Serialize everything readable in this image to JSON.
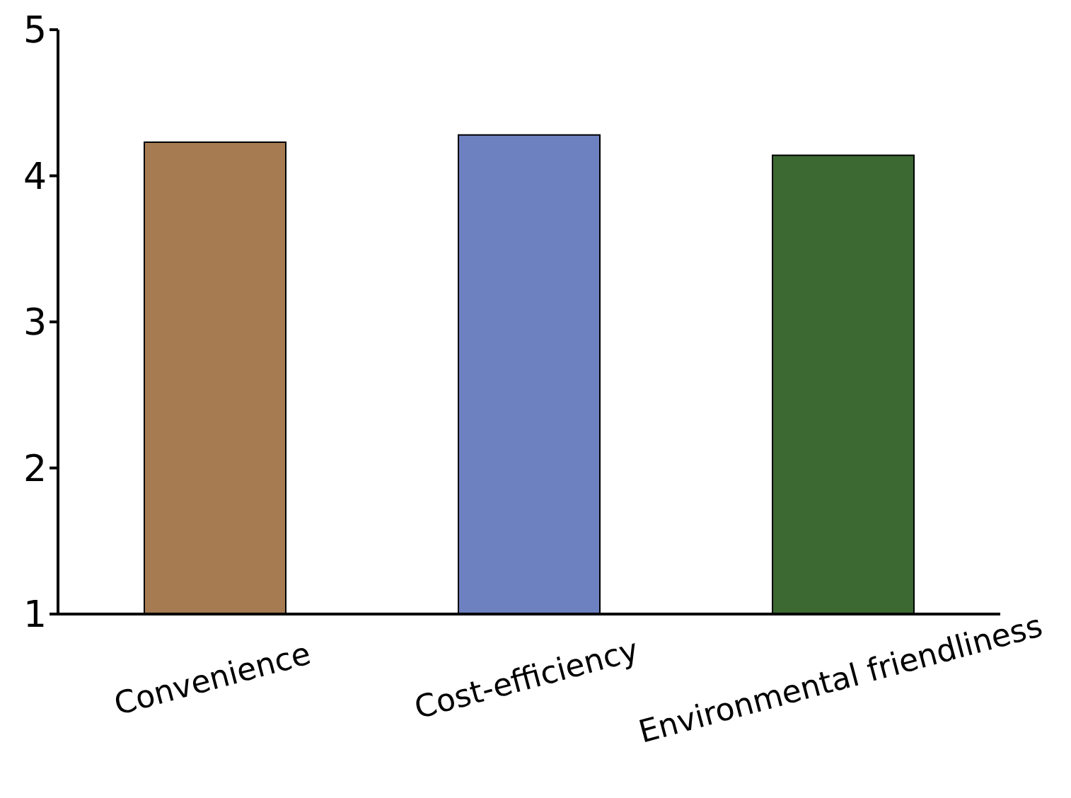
{
  "chart_data": {
    "type": "bar",
    "categories": [
      "Convenience",
      "Cost-efficiency",
      "Environmental friendliness"
    ],
    "values": [
      4.23,
      4.28,
      4.14
    ],
    "colors": [
      "#a67b51",
      "#6d80c0",
      "#3c6832"
    ],
    "ylim": [
      1,
      5
    ],
    "yticks": [
      1,
      2,
      3,
      4,
      5
    ],
    "grid": false
  }
}
